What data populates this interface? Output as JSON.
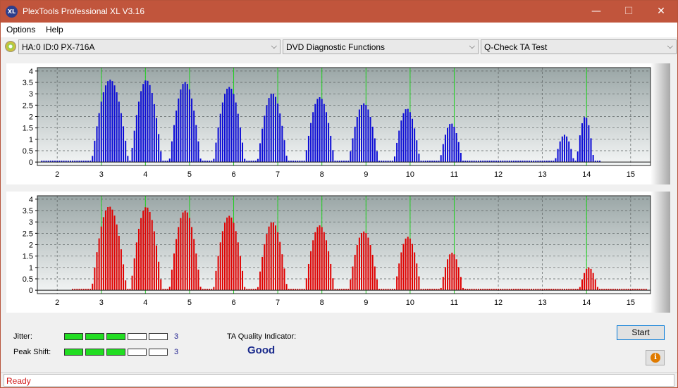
{
  "window": {
    "title": "PlexTools Professional XL V3.16",
    "icon_label": "XL",
    "controls": {
      "minimize": "—",
      "maximize": "☐",
      "close": "✕"
    }
  },
  "menu": {
    "items": [
      "Options",
      "Help"
    ]
  },
  "toolbar": {
    "drive": "HA:0 ID:0  PX-716A",
    "function": "DVD Diagnostic Functions",
    "test": "Q-Check TA Test",
    "arrow": "⌵"
  },
  "colors": {
    "upper_bars": "#0b0bd6",
    "lower_bars": "#e00000",
    "marker_lines": "#20d020"
  },
  "chart_data": [
    {
      "type": "bar",
      "series_color": "blue",
      "x_ticks": [
        2,
        3,
        4,
        5,
        6,
        7,
        8,
        9,
        10,
        11,
        12,
        13,
        14,
        15
      ],
      "y_ticks": [
        0,
        0.5,
        1,
        1.5,
        2,
        2.5,
        3,
        3.5,
        4
      ],
      "y_tick_labels": [
        "0",
        "0.5",
        "1",
        "1.5",
        "2",
        "2.5",
        "3",
        "3.5",
        "4"
      ],
      "xlim": [
        1.55,
        15.45
      ],
      "ylim": [
        -0.15,
        4.15
      ],
      "markers": [
        3,
        4,
        5,
        6,
        7,
        8,
        9,
        10,
        11,
        14
      ],
      "peaks": [
        {
          "center": 3.2,
          "height": 3.62,
          "width": 0.42
        },
        {
          "center": 4.02,
          "height": 3.6,
          "width": 0.36
        },
        {
          "center": 4.9,
          "height": 3.52,
          "width": 0.36
        },
        {
          "center": 5.9,
          "height": 3.3,
          "width": 0.36
        },
        {
          "center": 6.88,
          "height": 3.02,
          "width": 0.34
        },
        {
          "center": 7.95,
          "height": 2.85,
          "width": 0.34
        },
        {
          "center": 8.95,
          "height": 2.58,
          "width": 0.34
        },
        {
          "center": 9.93,
          "height": 2.35,
          "width": 0.3
        },
        {
          "center": 10.93,
          "height": 1.7,
          "width": 0.26
        },
        {
          "center": 13.97,
          "height": 2.0,
          "width": 0.2
        },
        {
          "center": 13.5,
          "height": 1.2,
          "width": 0.22
        }
      ],
      "range": [
        1.65,
        14.3
      ],
      "gaps": [
        [
          11.32,
          12.95
        ]
      ]
    },
    {
      "type": "bar",
      "series_color": "red",
      "x_ticks": [
        2,
        3,
        4,
        5,
        6,
        7,
        8,
        9,
        10,
        11,
        12,
        13,
        14,
        15
      ],
      "y_ticks": [
        0,
        0.5,
        1,
        1.5,
        2,
        2.5,
        3,
        3.5,
        4
      ],
      "y_tick_labels": [
        "0",
        "0.5",
        "1",
        "1.5",
        "2",
        "2.5",
        "3",
        "3.5",
        "4"
      ],
      "xlim": [
        1.55,
        15.45
      ],
      "ylim": [
        -0.15,
        4.15
      ],
      "markers": [
        3,
        4,
        5,
        6,
        7,
        8,
        9,
        10,
        11,
        14
      ],
      "peaks": [
        {
          "center": 3.18,
          "height": 3.68,
          "width": 0.4
        },
        {
          "center": 4.02,
          "height": 3.66,
          "width": 0.36
        },
        {
          "center": 4.9,
          "height": 3.5,
          "width": 0.36
        },
        {
          "center": 5.9,
          "height": 3.27,
          "width": 0.36
        },
        {
          "center": 6.88,
          "height": 3.0,
          "width": 0.34
        },
        {
          "center": 7.95,
          "height": 2.85,
          "width": 0.34
        },
        {
          "center": 8.95,
          "height": 2.58,
          "width": 0.34
        },
        {
          "center": 9.95,
          "height": 2.35,
          "width": 0.3
        },
        {
          "center": 10.95,
          "height": 1.65,
          "width": 0.26
        },
        {
          "center": 14.05,
          "height": 1.0,
          "width": 0.22
        }
      ],
      "range": [
        2.35,
        15.35
      ],
      "gaps": [
        [
          11.32,
          13.75
        ]
      ]
    }
  ],
  "bottom": {
    "jitter_label": "Jitter:",
    "peak_shift_label": "Peak Shift:",
    "jitter_value": "3",
    "peak_shift_value": "3",
    "jitter_level": 3,
    "peak_shift_level": 3,
    "meter_segments": 5,
    "ta_quality_label": "TA Quality Indicator:",
    "ta_quality_value": "Good",
    "start_label": "Start",
    "info_icon": "i"
  },
  "status": {
    "text": "Ready"
  }
}
